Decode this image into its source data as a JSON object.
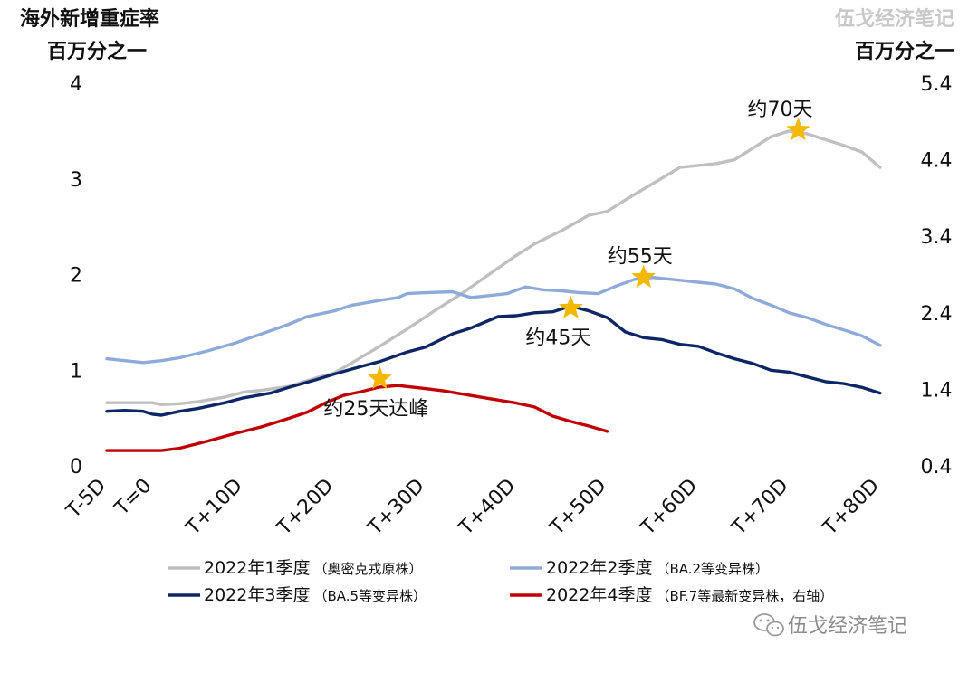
{
  "watermark_top": "伍戈经济笔记",
  "watermark_bottom": "伍戈经济笔记",
  "chart_data": {
    "type": "line",
    "left_axis": {
      "title_line1": "海外新增重症率",
      "title_line2": "百万分之一",
      "ylim": [
        0,
        4
      ],
      "ticks": [
        "0",
        "1",
        "2",
        "3",
        "4"
      ]
    },
    "right_axis": {
      "title": "百万分之一",
      "ylim": [
        0.4,
        5.4
      ],
      "ticks": [
        "0.4",
        "1.4",
        "2.4",
        "3.4",
        "4.4",
        "5.4"
      ]
    },
    "x_ticks": [
      "T-5D",
      "T=0",
      "T+10D",
      "T+20D",
      "T+30D",
      "T+40D",
      "T+50D",
      "T+60D",
      "T+70D",
      "T+80D"
    ],
    "x_tick_days": [
      -5,
      0,
      10,
      20,
      30,
      40,
      50,
      60,
      70,
      80
    ],
    "xlim": [
      -5,
      82
    ],
    "series": [
      {
        "name": "2022年1季度",
        "note": "（奥密克戎原株）",
        "color": "#c0c0c0",
        "axis": "left",
        "points": [
          [
            -5,
            0.66
          ],
          [
            -2,
            0.66
          ],
          [
            0,
            0.66
          ],
          [
            1,
            0.64
          ],
          [
            3,
            0.65
          ],
          [
            5,
            0.67
          ],
          [
            8,
            0.72
          ],
          [
            10,
            0.77
          ],
          [
            12,
            0.79
          ],
          [
            15,
            0.83
          ],
          [
            18,
            0.92
          ],
          [
            20,
            0.97
          ],
          [
            22,
            1.08
          ],
          [
            25,
            1.25
          ],
          [
            28,
            1.43
          ],
          [
            31,
            1.62
          ],
          [
            34,
            1.8
          ],
          [
            37,
            2.0
          ],
          [
            40,
            2.2
          ],
          [
            42,
            2.32
          ],
          [
            45,
            2.46
          ],
          [
            48,
            2.62
          ],
          [
            50,
            2.66
          ],
          [
            52,
            2.78
          ],
          [
            55,
            2.95
          ],
          [
            58,
            3.12
          ],
          [
            60,
            3.14
          ],
          [
            62,
            3.16
          ],
          [
            64,
            3.2
          ],
          [
            66,
            3.32
          ],
          [
            68,
            3.44
          ],
          [
            70,
            3.5
          ],
          [
            72,
            3.47
          ],
          [
            74,
            3.41
          ],
          [
            76,
            3.35
          ],
          [
            78,
            3.28
          ],
          [
            80,
            3.12
          ]
        ]
      },
      {
        "name": "2022年2季度",
        "note": "（BA.2等变异株）",
        "color": "#8eaadb",
        "axis": "left",
        "points": [
          [
            -5,
            1.12
          ],
          [
            -3,
            1.1
          ],
          [
            -1,
            1.08
          ],
          [
            1,
            1.1
          ],
          [
            3,
            1.13
          ],
          [
            6,
            1.2
          ],
          [
            9,
            1.28
          ],
          [
            12,
            1.38
          ],
          [
            15,
            1.48
          ],
          [
            17,
            1.56
          ],
          [
            20,
            1.62
          ],
          [
            22,
            1.68
          ],
          [
            25,
            1.73
          ],
          [
            27,
            1.76
          ],
          [
            28,
            1.8
          ],
          [
            30,
            1.81
          ],
          [
            33,
            1.82
          ],
          [
            35,
            1.76
          ],
          [
            37,
            1.78
          ],
          [
            39,
            1.8
          ],
          [
            41,
            1.87
          ],
          [
            43,
            1.84
          ],
          [
            45,
            1.83
          ],
          [
            47,
            1.81
          ],
          [
            49,
            1.8
          ],
          [
            51,
            1.88
          ],
          [
            53,
            1.95
          ],
          [
            55,
            1.97
          ],
          [
            58,
            1.94
          ],
          [
            60,
            1.92
          ],
          [
            62,
            1.9
          ],
          [
            64,
            1.85
          ],
          [
            66,
            1.75
          ],
          [
            68,
            1.68
          ],
          [
            70,
            1.6
          ],
          [
            72,
            1.55
          ],
          [
            74,
            1.48
          ],
          [
            76,
            1.42
          ],
          [
            78,
            1.36
          ],
          [
            80,
            1.26
          ]
        ]
      },
      {
        "name": "2022年3季度",
        "note": "（BA.5等变异株）",
        "color": "#0d2665",
        "axis": "left",
        "points": [
          [
            -5,
            0.57
          ],
          [
            -3,
            0.58
          ],
          [
            -1,
            0.57
          ],
          [
            0,
            0.54
          ],
          [
            1,
            0.53
          ],
          [
            3,
            0.57
          ],
          [
            5,
            0.6
          ],
          [
            8,
            0.66
          ],
          [
            10,
            0.71
          ],
          [
            13,
            0.76
          ],
          [
            15,
            0.82
          ],
          [
            18,
            0.9
          ],
          [
            20,
            0.96
          ],
          [
            23,
            1.04
          ],
          [
            25,
            1.09
          ],
          [
            28,
            1.19
          ],
          [
            30,
            1.24
          ],
          [
            33,
            1.38
          ],
          [
            35,
            1.44
          ],
          [
            38,
            1.56
          ],
          [
            40,
            1.57
          ],
          [
            42,
            1.6
          ],
          [
            44,
            1.61
          ],
          [
            46,
            1.67
          ],
          [
            48,
            1.62
          ],
          [
            50,
            1.55
          ],
          [
            52,
            1.4
          ],
          [
            54,
            1.34
          ],
          [
            56,
            1.32
          ],
          [
            58,
            1.27
          ],
          [
            60,
            1.25
          ],
          [
            62,
            1.18
          ],
          [
            64,
            1.12
          ],
          [
            66,
            1.07
          ],
          [
            68,
            1.0
          ],
          [
            70,
            0.98
          ],
          [
            72,
            0.93
          ],
          [
            74,
            0.88
          ],
          [
            76,
            0.86
          ],
          [
            78,
            0.82
          ],
          [
            80,
            0.76
          ]
        ]
      },
      {
        "name": "2022年4季度",
        "note": "（BF.7等最新变异株，右轴）",
        "color": "#c00000",
        "axis": "right",
        "points": [
          [
            -5,
            0.6
          ],
          [
            -3,
            0.6
          ],
          [
            -1,
            0.6
          ],
          [
            0,
            0.6
          ],
          [
            1,
            0.6
          ],
          [
            3,
            0.63
          ],
          [
            6,
            0.72
          ],
          [
            9,
            0.82
          ],
          [
            12,
            0.91
          ],
          [
            15,
            1.02
          ],
          [
            17,
            1.1
          ],
          [
            19,
            1.22
          ],
          [
            21,
            1.32
          ],
          [
            23,
            1.37
          ],
          [
            25,
            1.43
          ],
          [
            27,
            1.45
          ],
          [
            30,
            1.41
          ],
          [
            32,
            1.38
          ],
          [
            35,
            1.32
          ],
          [
            37,
            1.28
          ],
          [
            40,
            1.22
          ],
          [
            42,
            1.17
          ],
          [
            44,
            1.05
          ],
          [
            46,
            0.98
          ],
          [
            48,
            0.92
          ],
          [
            50,
            0.85
          ]
        ]
      }
    ],
    "annotations": [
      {
        "text": "约25天达峰",
        "x": 25,
        "y": 0.91,
        "axis": "left",
        "color": "#e00000"
      },
      {
        "text": "约45天",
        "x": 46,
        "y": 1.65,
        "axis": "left",
        "color": "#111111"
      },
      {
        "text": "约55天",
        "x": 54,
        "y": 1.97,
        "axis": "left",
        "color": "#111111"
      },
      {
        "text": "约70天",
        "x": 71,
        "y": 3.51,
        "axis": "left",
        "color": "#111111"
      }
    ],
    "star_color": "#f5b800",
    "legend_position": "bottom"
  }
}
